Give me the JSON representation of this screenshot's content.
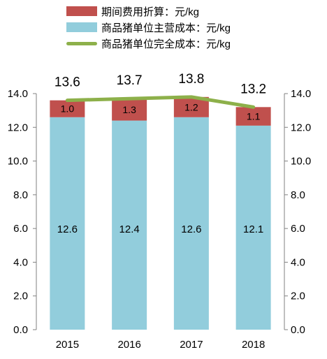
{
  "chart_data": {
    "type": "bar",
    "stacked": true,
    "categories": [
      "2015",
      "2016",
      "2017",
      "2018"
    ],
    "series": [
      {
        "name": "商品猪单位主营成本：元/kg",
        "kind": "bar",
        "color": "#92cddc",
        "values": [
          12.6,
          12.4,
          12.6,
          12.1
        ]
      },
      {
        "name": "期间费用折算：元/kg",
        "kind": "bar",
        "color": "#c0504d",
        "values": [
          1.0,
          1.3,
          1.2,
          1.1
        ]
      },
      {
        "name": "商品猪单位完全成本：元/kg",
        "kind": "line",
        "color": "#8db04a",
        "values": [
          13.6,
          13.7,
          13.8,
          13.2
        ]
      }
    ],
    "segment_labels": [
      [
        "12.6",
        "12.4",
        "12.6",
        "12.1"
      ],
      [
        "1.0",
        "1.3",
        "1.2",
        "1.1"
      ]
    ],
    "total_labels": [
      "13.6",
      "13.7",
      "13.8",
      "13.2"
    ],
    "ylim": [
      0,
      14
    ],
    "yticks": [
      "0.0",
      "2.0",
      "4.0",
      "6.0",
      "8.0",
      "10.0",
      "12.0",
      "14.0"
    ],
    "secondary_yticks": [
      "0.0",
      "2.0",
      "4.0",
      "6.0",
      "8.0",
      "10.0",
      "12.0",
      "14.0"
    ],
    "grid": false,
    "legend_position": "top"
  }
}
